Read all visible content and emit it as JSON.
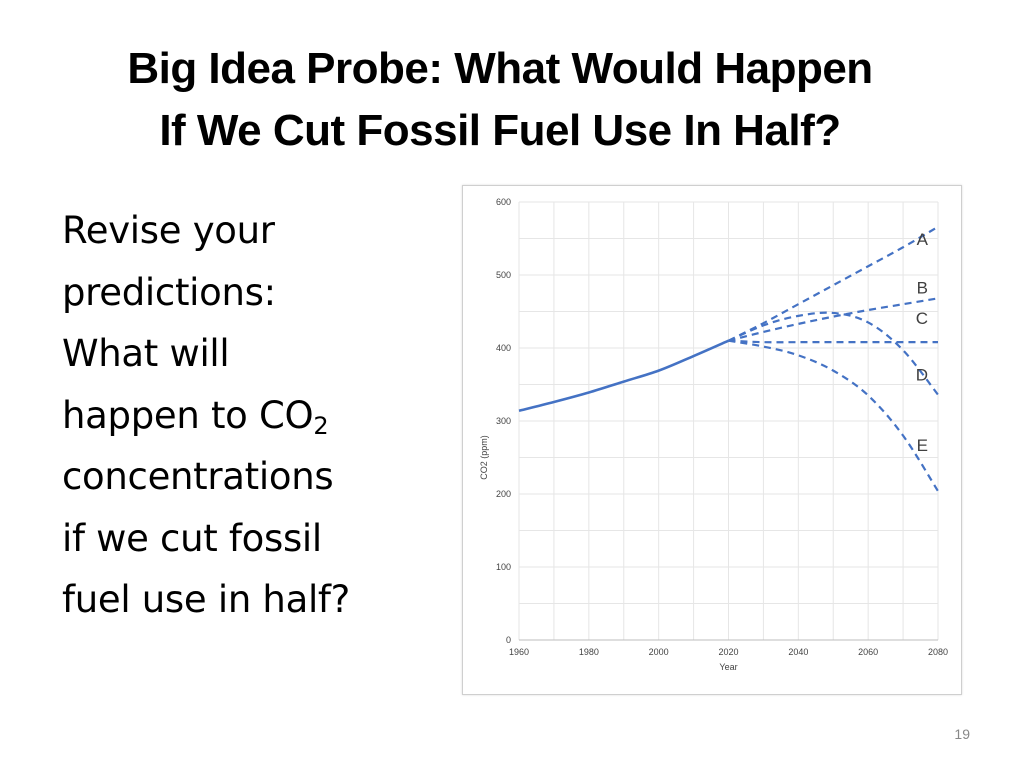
{
  "slide": {
    "title_line1": "Big Idea Probe: What Would Happen",
    "title_line2": "If We Cut Fossil Fuel Use In Half?",
    "body_lines": [
      "Revise your",
      "predictions:",
      "What will",
      "happen to CO",
      "concentrations",
      "if we cut fossil",
      "fuel use in half?"
    ],
    "co2_subscript": "2",
    "page_number": "19"
  },
  "chart_data": {
    "type": "line",
    "title": "",
    "xlabel": "Year",
    "ylabel": "CO2 (ppm)",
    "xlim": [
      1960,
      2080
    ],
    "ylim": [
      0,
      600
    ],
    "x_ticks": [
      1960,
      1980,
      2000,
      2020,
      2040,
      2060,
      2080
    ],
    "y_ticks": [
      0,
      100,
      200,
      300,
      400,
      500,
      600
    ],
    "grid": true,
    "series": [
      {
        "style": "solid",
        "color": "#4472c4",
        "points": [
          [
            1960,
            314
          ],
          [
            1970,
            326
          ],
          [
            1980,
            339
          ],
          [
            1990,
            354
          ],
          [
            2000,
            369
          ],
          [
            2010,
            389
          ],
          [
            2020,
            410
          ]
        ]
      },
      {
        "name": "A",
        "style": "dashed",
        "color": "#4472c4",
        "points": [
          [
            2020,
            410
          ],
          [
            2030,
            434
          ],
          [
            2040,
            460
          ],
          [
            2050,
            486
          ],
          [
            2060,
            512
          ],
          [
            2070,
            538
          ],
          [
            2080,
            566
          ]
        ]
      },
      {
        "name": "B",
        "style": "dashed",
        "color": "#4472c4",
        "points": [
          [
            2020,
            410
          ],
          [
            2030,
            422
          ],
          [
            2040,
            433
          ],
          [
            2050,
            443
          ],
          [
            2060,
            452
          ],
          [
            2070,
            460
          ],
          [
            2080,
            468
          ]
        ]
      },
      {
        "name": "C",
        "style": "dashed",
        "color": "#4472c4",
        "points": [
          [
            2020,
            410
          ],
          [
            2030,
            408
          ],
          [
            2040,
            408
          ],
          [
            2050,
            408
          ],
          [
            2060,
            408
          ],
          [
            2070,
            408
          ],
          [
            2080,
            408
          ]
        ]
      },
      {
        "name": "D",
        "style": "dashed",
        "color": "#4472c4",
        "points": [
          [
            2020,
            410
          ],
          [
            2030,
            431
          ],
          [
            2040,
            444
          ],
          [
            2050,
            448
          ],
          [
            2060,
            435
          ],
          [
            2070,
            397
          ],
          [
            2080,
            336
          ]
        ]
      },
      {
        "name": "E",
        "style": "dashed",
        "color": "#4472c4",
        "points": [
          [
            2020,
            410
          ],
          [
            2030,
            402
          ],
          [
            2040,
            390
          ],
          [
            2050,
            369
          ],
          [
            2060,
            335
          ],
          [
            2070,
            280
          ],
          [
            2080,
            204
          ]
        ]
      }
    ]
  }
}
